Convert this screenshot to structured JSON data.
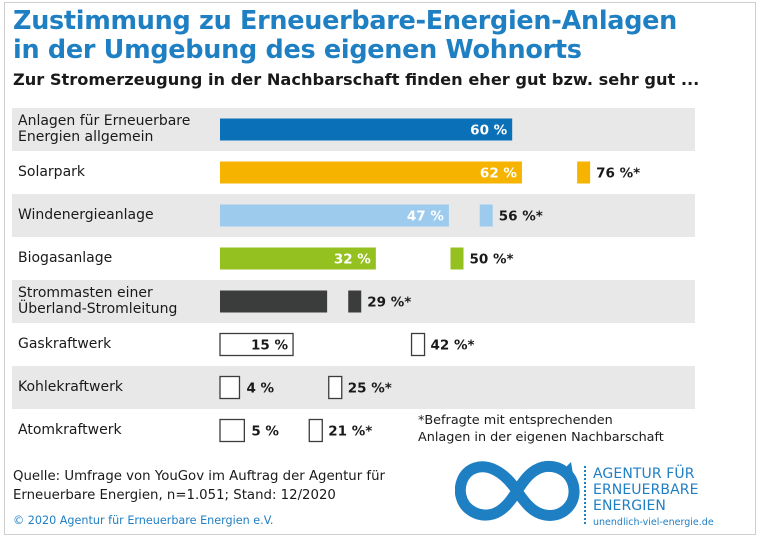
{
  "header": {
    "title_line1": "Zustimmung zu Erneuerbare-Energien-Anlagen",
    "title_line2": "in der Umgebung des eigenen Wohnorts",
    "subtitle": "Zur Stromerzeugung in der Nachbarschaft finden eher gut bzw. sehr gut ..."
  },
  "chart_data": {
    "type": "bar",
    "orientation": "horizontal",
    "xlim": [
      0,
      100
    ],
    "categories": [
      [
        "Anlagen für Erneuerbare",
        "Energien allgemein"
      ],
      [
        "Solarpark"
      ],
      [
        "Windenergieanlage"
      ],
      [
        "Biogasanlage"
      ],
      [
        "Strommasten einer",
        "Überland-Stromleitung"
      ],
      [
        "Gaskraftwerk"
      ],
      [
        "Kohlekraftwerk"
      ],
      [
        "Atomkraftwerk"
      ]
    ],
    "series": [
      {
        "values": [
          60,
          62,
          47,
          32,
          22,
          15,
          4,
          5
        ],
        "labels": [
          "60 %",
          "62 %",
          "47 %",
          "32 %",
          "",
          "15 %",
          "4 %",
          "5 %"
        ]
      },
      {
        "values": [
          null,
          76,
          56,
          50,
          29,
          42,
          25,
          21
        ],
        "labels": [
          "",
          "76 %*",
          "56 %*",
          "50 %*",
          "29 %*",
          "42 %*",
          "25 %*",
          "21 %*"
        ]
      }
    ],
    "colors": [
      "#0a70b8",
      "#f6b300",
      "#9ccbee",
      "#94c11f",
      "#3b3d3c",
      "#ffffff",
      "#ffffff",
      "#ffffff"
    ],
    "footnote": [
      "*Befragte mit entsprechenden",
      "Anlagen in der eigenen Nachbarschaft"
    ]
  },
  "source": {
    "line1": "Quelle: Umfrage von YouGov im Auftrag der Agentur für",
    "line2": "Erneuerbare Energien, n=1.051; Stand: 12/2020"
  },
  "copyright": "© 2020 Agentur für Erneuerbare Energien e.V.",
  "logo": {
    "line1": "AGENTUR FÜR",
    "line2": "ERNEUERBARE",
    "line3": "ENERGIEN",
    "url": "unendlich-viel-energie.de",
    "color": "#1f7fc3"
  }
}
